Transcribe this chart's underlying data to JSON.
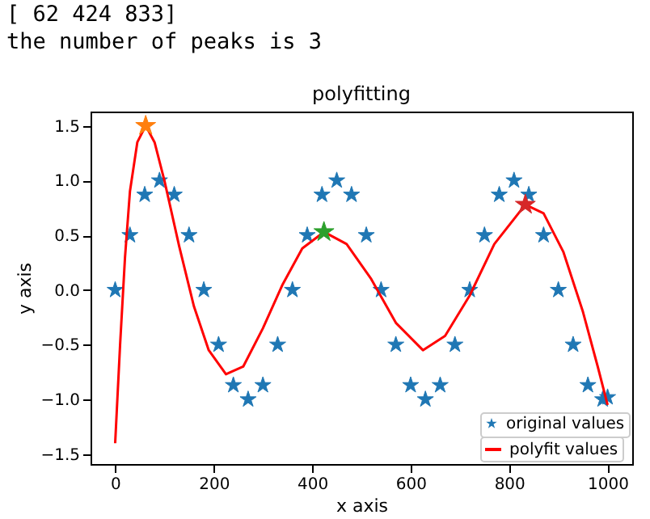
{
  "chart_data": {
    "type": "scatter",
    "title": "polyfitting",
    "xlabel": "x axis",
    "ylabel": "y axis",
    "annotations": [
      "[ 62 424 833]",
      "the number of peaks is 3"
    ],
    "xlim": [
      -50,
      1050
    ],
    "ylim": [
      -1.59,
      1.63
    ],
    "xticks": [
      0,
      200,
      400,
      600,
      800,
      1000
    ],
    "yticks": [
      {
        "value": -1.5,
        "label": "−1.5"
      },
      {
        "value": -1.0,
        "label": "−1.0"
      },
      {
        "value": -0.5,
        "label": "−0.5"
      },
      {
        "value": 0,
        "label": "0.0"
      },
      {
        "value": 0.5,
        "label": "0.5"
      },
      {
        "value": 1.0,
        "label": "1.0"
      },
      {
        "value": 1.5,
        "label": "1.5"
      }
    ],
    "grid": false,
    "legend": "bottom right",
    "series": [
      {
        "name": "original values",
        "marker": "star",
        "color": "#1f77b4",
        "x": [
          0,
          30,
          60,
          90,
          120,
          150,
          180,
          210,
          240,
          270,
          300,
          330,
          360,
          390,
          420,
          450,
          480,
          510,
          540,
          570,
          600,
          630,
          660,
          690,
          720,
          750,
          780,
          810,
          840,
          870,
          900,
          930,
          960,
          990,
          1000
        ],
        "values": [
          0,
          0.5,
          0.87,
          1,
          0.87,
          0.5,
          0,
          -0.5,
          -0.87,
          -1,
          -0.87,
          -0.5,
          0,
          0.5,
          0.87,
          1,
          0.87,
          0.5,
          0,
          -0.5,
          -0.87,
          -1,
          -0.87,
          -0.5,
          0,
          0.5,
          0.87,
          1,
          0.87,
          0.5,
          0,
          -0.5,
          -0.87,
          -1,
          -0.98
        ]
      },
      {
        "name": "polyfit values",
        "type": "line",
        "marker": "none",
        "color": "#ff0000",
        "x": [
          0,
          10,
          20,
          30,
          45,
          62,
          80,
          100,
          130,
          160,
          190,
          225,
          260,
          300,
          340,
          380,
          424,
          470,
          520,
          570,
          625,
          670,
          720,
          770,
          833,
          870,
          910,
          950,
          980,
          1000
        ],
        "values": [
          -1.4,
          -0.5,
          0.3,
          0.9,
          1.35,
          1.5,
          1.35,
          1.0,
          0.4,
          -0.15,
          -0.55,
          -0.77,
          -0.7,
          -0.35,
          0.05,
          0.38,
          0.53,
          0.42,
          0.1,
          -0.3,
          -0.55,
          -0.42,
          -0.05,
          0.42,
          0.78,
          0.7,
          0.35,
          -0.2,
          -0.7,
          -1.05
        ]
      },
      {
        "marker": "star",
        "color": "#ff7f0e",
        "x": [
          62
        ],
        "values": [
          1.5
        ]
      },
      {
        "marker": "star",
        "color": "#2ca02c",
        "x": [
          424
        ],
        "values": [
          0.53
        ]
      },
      {
        "marker": "star",
        "color": "#d62728",
        "x": [
          833
        ],
        "values": [
          0.78
        ]
      }
    ]
  }
}
